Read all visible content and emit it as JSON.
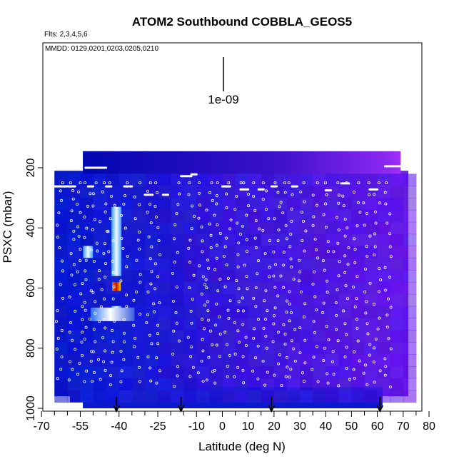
{
  "title": "ATOM2 Southbound COBBLA_GEOS5",
  "flights_note": "Flts: 2,3,4,5,6",
  "dates_note": "MMDD: 0129,0201,0203,0205,0210",
  "scale_label": "1e-09",
  "chart_data": {
    "type": "heatmap",
    "title": "ATOM2 Southbound COBBLA_GEOS5",
    "xlabel": "Latitude (deg N)",
    "ylabel": "PSXC (mbar)",
    "xlim": [
      -70,
      80
    ],
    "ylim": [
      1000,
      200
    ],
    "x_ticks": [
      -70,
      -55,
      -40,
      -25,
      -10,
      0,
      10,
      20,
      30,
      40,
      50,
      60,
      70,
      80
    ],
    "x_minor_ticks": [
      -65,
      -60,
      -50,
      -45,
      -35,
      -30,
      -20,
      -15,
      -5,
      5,
      15,
      25,
      35,
      45,
      55,
      65,
      75
    ],
    "y_ticks": [
      200,
      400,
      600,
      800,
      1000
    ],
    "x_tick_labels": [
      "-70",
      "-55",
      "-40",
      "-25",
      "-10",
      "0",
      "10",
      "20",
      "30",
      "40",
      "50",
      "60",
      "70",
      "80"
    ],
    "y_tick_labels": [
      "200",
      "400",
      "600",
      "800",
      "1000"
    ],
    "colormap": [
      "#0010d8",
      "#2040e8",
      "#6a30e0",
      "#a030f0",
      "#ffffff",
      "#ff4000",
      "#800000"
    ],
    "arrow_markers_lat": [
      -41,
      -16,
      19,
      61
    ],
    "hotspots": [
      {
        "lat": -41,
        "p_top": 330,
        "p_bottom": 560,
        "level": "light"
      },
      {
        "lat": -41,
        "p_top": 580,
        "p_bottom": 610,
        "level": "max"
      },
      {
        "lat": -41,
        "p_top": 660,
        "p_bottom": 700,
        "level": "light"
      },
      {
        "lat": -52,
        "p_top": 460,
        "p_bottom": 500,
        "level": "light"
      }
    ]
  }
}
